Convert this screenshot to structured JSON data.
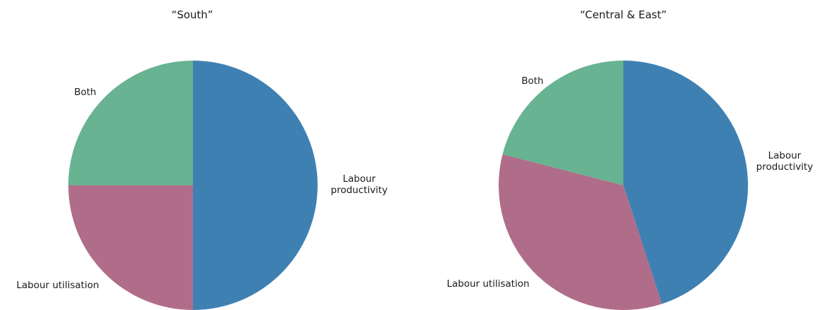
{
  "chart_data": [
    {
      "type": "pie",
      "title": "“South”",
      "slices": [
        {
          "label": [
            "Labour",
            "productivity"
          ],
          "value": 50,
          "color": "#3f80b3"
        },
        {
          "label": [
            "Labour utilisation"
          ],
          "value": 25,
          "color": "#b06d89"
        },
        {
          "label": [
            "Both"
          ],
          "value": 25,
          "color": "#68b391"
        }
      ]
    },
    {
      "type": "pie",
      "title": "“Central & East”",
      "slices": [
        {
          "label": [
            "Labour",
            "productivity"
          ],
          "value": 45,
          "color": "#3f80b3"
        },
        {
          "label": [
            "Labour utilisation"
          ],
          "value": 34,
          "color": "#b06d89"
        },
        {
          "label": [
            "Both"
          ],
          "value": 21,
          "color": "#68b391"
        }
      ]
    }
  ]
}
